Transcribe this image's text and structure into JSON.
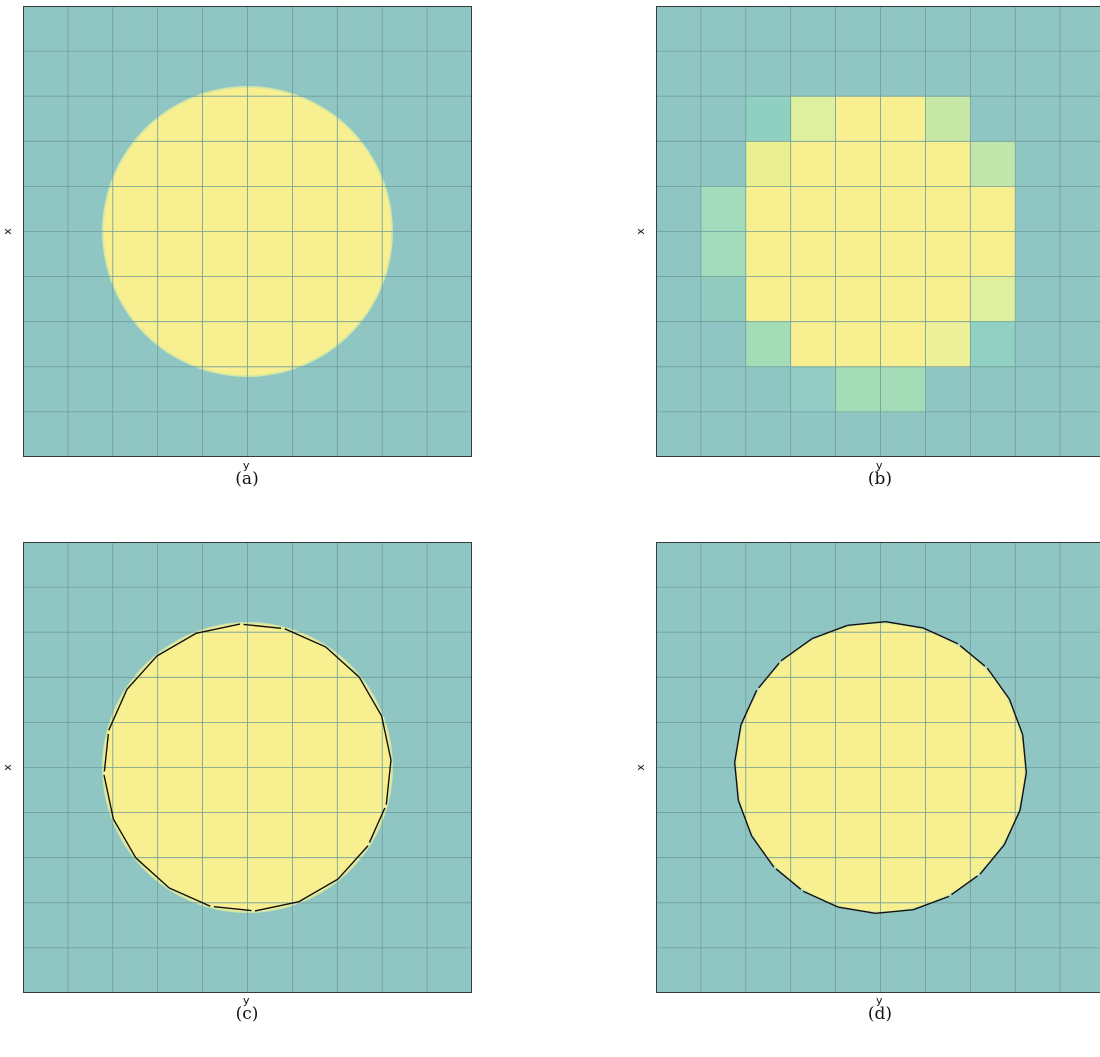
{
  "colors": {
    "background": "#8fc6c4",
    "interior": "#f8ef91",
    "grid": "#6e9c9a",
    "frame": "#3b3b3b",
    "boundary": "#111111"
  },
  "grid": {
    "cells": 10
  },
  "circle": {
    "cx": 5.0,
    "cy": 5.0,
    "r": 3.2
  },
  "panels": [
    {
      "id": "a",
      "x_label": "x",
      "y_label": "y",
      "caption": "(a)",
      "mode": "fine"
    },
    {
      "id": "b",
      "x_label": "x",
      "y_label": "y",
      "caption": "(b)",
      "mode": "coarse",
      "coarse_cells": [
        {
          "row": 2,
          "col": 2,
          "color": "#90d0c0"
        },
        {
          "row": 2,
          "col": 3,
          "color": "#def0a0"
        },
        {
          "row": 2,
          "col": 4,
          "color": "#f8ef91"
        },
        {
          "row": 2,
          "col": 5,
          "color": "#f8ef91"
        },
        {
          "row": 2,
          "col": 6,
          "color": "#c8e8a8"
        },
        {
          "row": 3,
          "col": 2,
          "color": "#eaf092"
        },
        {
          "row": 3,
          "col": 3,
          "color": "#f8ef91"
        },
        {
          "row": 3,
          "col": 4,
          "color": "#f8ef91"
        },
        {
          "row": 3,
          "col": 5,
          "color": "#f8ef91"
        },
        {
          "row": 3,
          "col": 6,
          "color": "#f8ef91"
        },
        {
          "row": 3,
          "col": 7,
          "color": "#c0e6ac"
        },
        {
          "row": 4,
          "col": 1,
          "color": "#a2dcbc"
        },
        {
          "row": 4,
          "col": 2,
          "color": "#f8ef91"
        },
        {
          "row": 4,
          "col": 3,
          "color": "#f8ef91"
        },
        {
          "row": 4,
          "col": 4,
          "color": "#f8ef91"
        },
        {
          "row": 4,
          "col": 5,
          "color": "#f8ef91"
        },
        {
          "row": 4,
          "col": 6,
          "color": "#f8ef91"
        },
        {
          "row": 4,
          "col": 7,
          "color": "#f8ef91"
        },
        {
          "row": 5,
          "col": 1,
          "color": "#a2dcbc"
        },
        {
          "row": 5,
          "col": 2,
          "color": "#f8ef91"
        },
        {
          "row": 5,
          "col": 3,
          "color": "#f8ef91"
        },
        {
          "row": 5,
          "col": 4,
          "color": "#f8ef91"
        },
        {
          "row": 5,
          "col": 5,
          "color": "#f8ef91"
        },
        {
          "row": 5,
          "col": 6,
          "color": "#f8ef91"
        },
        {
          "row": 5,
          "col": 7,
          "color": "#f8ef91"
        },
        {
          "row": 6,
          "col": 1,
          "color": "#92ccc0"
        },
        {
          "row": 6,
          "col": 2,
          "color": "#f8ef91"
        },
        {
          "row": 6,
          "col": 3,
          "color": "#f8ef91"
        },
        {
          "row": 6,
          "col": 4,
          "color": "#f8ef91"
        },
        {
          "row": 6,
          "col": 5,
          "color": "#f8ef91"
        },
        {
          "row": 6,
          "col": 6,
          "color": "#f8ef91"
        },
        {
          "row": 6,
          "col": 7,
          "color": "#def0a0"
        },
        {
          "row": 7,
          "col": 2,
          "color": "#a4dcb8"
        },
        {
          "row": 7,
          "col": 3,
          "color": "#f8ef91"
        },
        {
          "row": 7,
          "col": 4,
          "color": "#f8ef91"
        },
        {
          "row": 7,
          "col": 5,
          "color": "#f8ef91"
        },
        {
          "row": 7,
          "col": 6,
          "color": "#eef09a"
        },
        {
          "row": 7,
          "col": 7,
          "color": "#92d0c4"
        },
        {
          "row": 8,
          "col": 3,
          "color": "#94ccc6"
        },
        {
          "row": 8,
          "col": 4,
          "color": "#a4dcb8"
        },
        {
          "row": 8,
          "col": 5,
          "color": "#a4dcb8"
        }
      ]
    },
    {
      "id": "c",
      "x_label": "x",
      "y_label": "y",
      "caption": "(c)",
      "mode": "fine",
      "polygon": {
        "segments": 20,
        "radius": 3.2,
        "phase_deg": -3,
        "gaps": [
          1,
          5,
          10,
          15
        ]
      }
    },
    {
      "id": "d",
      "x_label": "x",
      "y_label": "y",
      "caption": "(d)",
      "mode": "fine",
      "polygon": {
        "segments": 24,
        "radius": 3.25,
        "phase_deg": 2,
        "gaps": [
          3,
          8,
          14,
          20
        ]
      }
    }
  ]
}
